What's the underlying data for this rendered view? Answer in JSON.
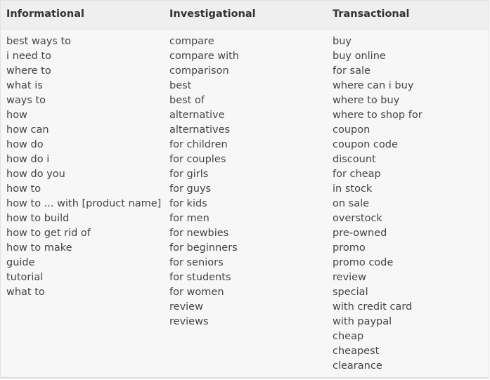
{
  "headers": [
    "Informational",
    "Investigational",
    "Transactional"
  ],
  "columns": [
    [
      "best ways to",
      "i need to",
      "where to",
      "what is",
      "ways to",
      "how",
      "how can",
      "how do",
      "how do i",
      "how do you",
      "how to",
      "how to ... with [product name]",
      "how to build",
      "how to get rid of",
      "how to make",
      "guide",
      "tutorial",
      "what to"
    ],
    [
      "compare",
      "compare with",
      "comparison",
      "best",
      "best of",
      "alternative",
      "alternatives",
      "for children",
      "for couples",
      "for girls",
      "for guys",
      "for kids",
      "for men",
      "for newbies",
      "for beginners",
      "for seniors",
      "for students",
      "for women",
      "review",
      "reviews"
    ],
    [
      "buy",
      "buy online",
      "for sale",
      "where can i buy",
      "where to buy",
      "where to shop for",
      "coupon",
      "coupon code",
      "discount",
      "for cheap",
      "in stock",
      "on sale",
      "overstock",
      "pre-owned",
      "promo",
      "promo code",
      "review",
      "special",
      "with credit card",
      "with paypal",
      "cheap",
      "cheapest",
      "clearance"
    ]
  ]
}
